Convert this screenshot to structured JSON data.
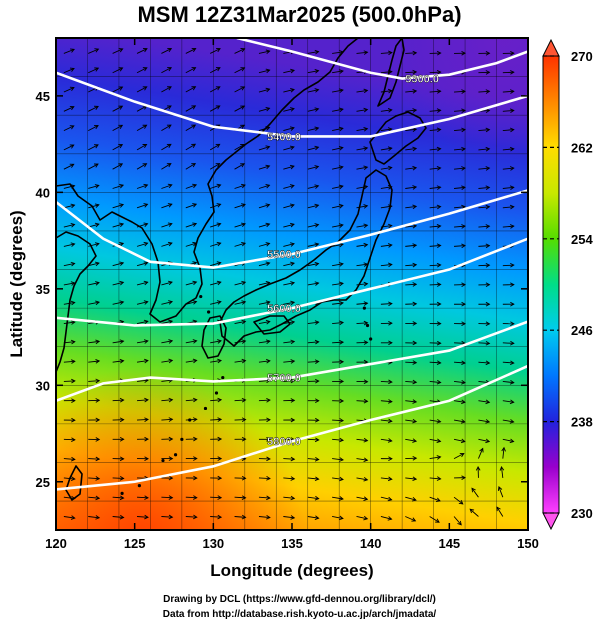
{
  "title": "MSM 12Z31Mar2025 (500.0hPa)",
  "credits": {
    "line1": "Drawing by DCL (https://www.gfd-dennou.org/library/dcl/)",
    "line2": "Data from http://database.rish.kyoto-u.ac.jp/arch/jmadata/"
  },
  "chart_data": {
    "type": "heatmap",
    "title": "MSM 12Z31Mar2025 (500.0hPa)",
    "xlabel": "Longitude (degrees)",
    "ylabel": "Latitude  (degrees)",
    "xlim": [
      120,
      150
    ],
    "ylim": [
      22.5,
      48
    ],
    "xticks": [
      120,
      125,
      130,
      135,
      140,
      145,
      150
    ],
    "yticks": [
      25,
      30,
      35,
      40,
      45
    ],
    "colorbar": {
      "min": 230,
      "max": 270,
      "ticks": [
        230,
        238,
        246,
        254,
        262,
        270
      ],
      "colors": [
        "#ff40ff",
        "#9900cc",
        "#2222dd",
        "#0077ff",
        "#00ccee",
        "#00dd88",
        "#55dd00",
        "#c8e800",
        "#ffdd00",
        "#ff8800",
        "#ff3300"
      ]
    },
    "contours": [
      {
        "label": "5300.0",
        "points": [
          [
            131.5,
            48
          ],
          [
            135,
            47.3
          ],
          [
            140,
            46.2
          ],
          [
            142,
            45.9
          ],
          [
            145,
            46.1
          ],
          [
            148,
            46.7
          ],
          [
            150,
            47.3
          ]
        ]
      },
      {
        "label": "5400.0",
        "points": [
          [
            120,
            46.2
          ],
          [
            125,
            44.7
          ],
          [
            130,
            43.4
          ],
          [
            135,
            42.9
          ],
          [
            140,
            42.9
          ],
          [
            145,
            43.8
          ],
          [
            150,
            45.0
          ]
        ]
      },
      {
        "label": "5500.0",
        "points": [
          [
            120,
            39.5
          ],
          [
            123,
            37.6
          ],
          [
            126,
            36.4
          ],
          [
            130,
            36.1
          ],
          [
            135,
            36.8
          ],
          [
            140,
            37.8
          ],
          [
            145,
            38.9
          ],
          [
            150,
            40.1
          ]
        ]
      },
      {
        "label": "5600.0",
        "points": [
          [
            120,
            33.5
          ],
          [
            125,
            33.1
          ],
          [
            130,
            33.2
          ],
          [
            135,
            34.0
          ],
          [
            140,
            35.0
          ],
          [
            145,
            36.0
          ],
          [
            150,
            37.6
          ]
        ]
      },
      {
        "label": "5700.0",
        "points": [
          [
            120,
            29.2
          ],
          [
            123,
            30.1
          ],
          [
            126,
            30.4
          ],
          [
            130,
            30.2
          ],
          [
            135,
            30.4
          ],
          [
            140,
            31.1
          ],
          [
            145,
            31.8
          ],
          [
            150,
            33.3
          ]
        ]
      },
      {
        "label": "5800.0",
        "points": [
          [
            120,
            24.6
          ],
          [
            125,
            25.0
          ],
          [
            130,
            25.8
          ],
          [
            135,
            27.1
          ],
          [
            140,
            28.2
          ],
          [
            145,
            29.2
          ],
          [
            150,
            31.0
          ]
        ]
      }
    ]
  }
}
